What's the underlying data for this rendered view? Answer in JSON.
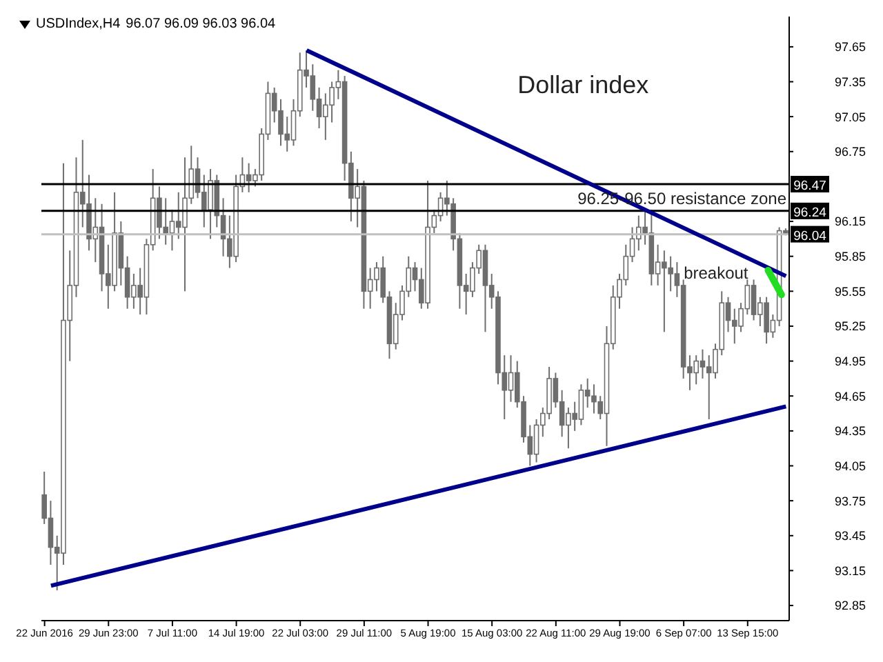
{
  "chart_data": {
    "type": "candlestick",
    "title": "USDIndex,H4",
    "subtitle": "96.07 96.09 96.03 96.04",
    "categories": [
      "22 Jun 2016",
      null,
      null,
      null,
      null,
      null,
      null,
      null,
      null,
      null,
      "29 Jun 23:00",
      null,
      null,
      null,
      null,
      null,
      null,
      null,
      null,
      null,
      "7 Jul 11:00",
      null,
      null,
      null,
      null,
      null,
      null,
      null,
      null,
      null,
      "14 Jul 19:00",
      null,
      null,
      null,
      null,
      null,
      null,
      null,
      null,
      null,
      "22 Jul 03:00",
      null,
      null,
      null,
      null,
      null,
      null,
      null,
      null,
      null,
      "29 Jul 11:00",
      null,
      null,
      null,
      null,
      null,
      null,
      null,
      null,
      null,
      "5 Aug 19:00",
      null,
      null,
      null,
      null,
      null,
      null,
      null,
      null,
      null,
      "15 Aug 03:00",
      null,
      null,
      null,
      null,
      null,
      null,
      null,
      null,
      null,
      "22 Aug 11:00",
      null,
      null,
      null,
      null,
      null,
      null,
      null,
      null,
      null,
      "29 Aug 19:00",
      null,
      null,
      null,
      null,
      null,
      null,
      null,
      null,
      null,
      "6 Sep 07:00",
      null,
      null,
      null,
      null,
      null,
      null,
      null,
      null,
      null,
      "13 Sep 15:00",
      null,
      null,
      null,
      null,
      null,
      null
    ],
    "color": "#6e6e6e",
    "ohlc": [
      [
        93.8,
        94.0,
        93.55,
        93.6
      ],
      [
        93.6,
        93.75,
        93.2,
        93.35
      ],
      [
        93.35,
        93.45,
        92.98,
        93.3
      ],
      [
        93.3,
        96.65,
        93.2,
        95.3
      ],
      [
        95.3,
        95.9,
        94.95,
        95.6
      ],
      [
        95.6,
        96.7,
        95.5,
        96.4
      ],
      [
        96.4,
        96.85,
        96.1,
        96.3
      ],
      [
        96.3,
        96.55,
        95.9,
        96.0
      ],
      [
        96.0,
        96.35,
        95.8,
        96.1
      ],
      [
        96.1,
        96.3,
        95.55,
        95.7
      ],
      [
        95.7,
        95.95,
        95.4,
        95.6
      ],
      [
        95.6,
        96.4,
        95.55,
        96.05
      ],
      [
        96.05,
        96.15,
        95.6,
        95.75
      ],
      [
        95.75,
        95.85,
        95.4,
        95.5
      ],
      [
        95.5,
        95.7,
        95.4,
        95.6
      ],
      [
        95.6,
        95.75,
        95.35,
        95.5
      ],
      [
        95.5,
        96.0,
        95.35,
        95.95
      ],
      [
        95.95,
        96.6,
        95.9,
        96.35
      ],
      [
        96.35,
        96.45,
        96.0,
        96.1
      ],
      [
        96.1,
        96.35,
        95.95,
        96.05
      ],
      [
        96.05,
        96.25,
        95.9,
        96.15
      ],
      [
        96.15,
        96.4,
        96.0,
        96.1
      ],
      [
        96.1,
        96.7,
        95.55,
        96.35
      ],
      [
        96.35,
        96.8,
        96.3,
        96.6
      ],
      [
        96.6,
        96.7,
        96.35,
        96.4
      ],
      [
        96.4,
        96.55,
        96.1,
        96.25
      ],
      [
        96.25,
        96.6,
        96.0,
        96.5
      ],
      [
        96.5,
        96.55,
        96.1,
        96.2
      ],
      [
        96.2,
        96.35,
        95.85,
        96.0
      ],
      [
        96.0,
        96.2,
        95.75,
        95.85
      ],
      [
        95.85,
        96.55,
        95.8,
        96.45
      ],
      [
        96.45,
        96.7,
        96.4,
        96.55
      ],
      [
        96.55,
        96.65,
        96.4,
        96.5
      ],
      [
        96.5,
        96.6,
        96.45,
        96.55
      ],
      [
        96.55,
        96.95,
        96.5,
        96.9
      ],
      [
        96.9,
        97.35,
        96.85,
        97.25
      ],
      [
        97.25,
        97.3,
        97.0,
        97.1
      ],
      [
        97.1,
        97.2,
        96.8,
        96.9
      ],
      [
        96.9,
        97.05,
        96.75,
        96.85
      ],
      [
        96.85,
        97.2,
        96.8,
        97.1
      ],
      [
        97.1,
        97.6,
        97.05,
        97.45
      ],
      [
        97.45,
        97.62,
        97.3,
        97.4
      ],
      [
        97.4,
        97.5,
        97.1,
        97.2
      ],
      [
        97.2,
        97.3,
        96.95,
        97.05
      ],
      [
        97.05,
        97.25,
        96.85,
        97.15
      ],
      [
        97.15,
        97.35,
        97.0,
        97.3
      ],
      [
        97.3,
        97.45,
        97.2,
        97.35
      ],
      [
        97.35,
        97.4,
        96.5,
        96.65
      ],
      [
        96.65,
        96.75,
        96.15,
        96.35
      ],
      [
        96.35,
        96.6,
        96.1,
        96.45
      ],
      [
        96.45,
        96.5,
        95.4,
        95.55
      ],
      [
        95.55,
        95.75,
        95.4,
        95.65
      ],
      [
        95.65,
        95.8,
        95.55,
        95.75
      ],
      [
        95.75,
        95.85,
        95.45,
        95.5
      ],
      [
        95.5,
        95.55,
        94.97,
        95.1
      ],
      [
        95.1,
        95.45,
        95.05,
        95.35
      ],
      [
        95.35,
        95.6,
        95.3,
        95.55
      ],
      [
        95.55,
        95.85,
        95.5,
        95.75
      ],
      [
        95.75,
        95.8,
        95.55,
        95.65
      ],
      [
        95.65,
        95.75,
        95.4,
        95.45
      ],
      [
        95.45,
        96.5,
        95.4,
        96.1
      ],
      [
        96.1,
        96.25,
        96.05,
        96.2
      ],
      [
        96.2,
        96.4,
        96.15,
        96.35
      ],
      [
        96.35,
        96.5,
        96.2,
        96.3
      ],
      [
        96.3,
        96.35,
        95.9,
        96.0
      ],
      [
        96.0,
        96.05,
        95.4,
        95.6
      ],
      [
        95.6,
        95.7,
        95.35,
        95.55
      ],
      [
        95.55,
        95.8,
        95.5,
        95.75
      ],
      [
        95.75,
        95.95,
        95.7,
        95.9
      ],
      [
        95.9,
        95.95,
        95.2,
        95.6
      ],
      [
        95.6,
        95.7,
        95.4,
        95.5
      ],
      [
        95.5,
        95.55,
        94.75,
        94.85
      ],
      [
        94.85,
        95.0,
        94.45,
        94.7
      ],
      [
        94.7,
        95.0,
        94.6,
        94.85
      ],
      [
        94.85,
        94.95,
        94.55,
        94.6
      ],
      [
        94.6,
        94.65,
        94.25,
        94.3
      ],
      [
        94.3,
        94.4,
        94.05,
        94.15
      ],
      [
        94.15,
        94.45,
        94.08,
        94.4
      ],
      [
        94.4,
        94.55,
        94.3,
        94.5
      ],
      [
        94.5,
        94.9,
        94.45,
        94.8
      ],
      [
        94.8,
        94.85,
        94.55,
        94.6
      ],
      [
        94.6,
        94.7,
        94.3,
        94.4
      ],
      [
        94.4,
        94.55,
        94.2,
        94.5
      ],
      [
        94.5,
        94.6,
        94.35,
        94.45
      ],
      [
        94.45,
        94.75,
        94.4,
        94.7
      ],
      [
        94.7,
        94.8,
        94.55,
        94.65
      ],
      [
        94.65,
        94.75,
        94.5,
        94.6
      ],
      [
        94.6,
        94.65,
        94.45,
        94.5
      ],
      [
        94.5,
        95.25,
        94.22,
        95.1
      ],
      [
        95.1,
        95.6,
        95.05,
        95.5
      ],
      [
        95.5,
        95.7,
        95.4,
        95.65
      ],
      [
        95.65,
        95.95,
        95.6,
        95.85
      ],
      [
        95.85,
        96.1,
        95.8,
        96.0
      ],
      [
        96.0,
        96.2,
        95.9,
        96.1
      ],
      [
        96.1,
        96.26,
        95.95,
        96.05
      ],
      [
        96.05,
        96.25,
        95.6,
        95.7
      ],
      [
        95.7,
        95.95,
        95.6,
        95.8
      ],
      [
        95.8,
        95.9,
        95.2,
        95.75
      ],
      [
        95.75,
        95.85,
        95.55,
        95.7
      ],
      [
        95.7,
        95.8,
        95.5,
        95.6
      ],
      [
        95.6,
        95.65,
        94.8,
        94.9
      ],
      [
        94.9,
        95.0,
        94.7,
        94.85
      ],
      [
        94.85,
        95.0,
        94.75,
        94.95
      ],
      [
        94.95,
        95.05,
        94.8,
        94.9
      ],
      [
        94.9,
        95.0,
        94.45,
        94.85
      ],
      [
        94.85,
        95.1,
        94.8,
        95.05
      ],
      [
        95.05,
        95.55,
        95.0,
        95.45
      ],
      [
        95.45,
        95.5,
        95.2,
        95.3
      ],
      [
        95.3,
        95.4,
        95.1,
        95.25
      ],
      [
        95.25,
        95.45,
        95.2,
        95.4
      ],
      [
        95.4,
        95.65,
        95.35,
        95.6
      ],
      [
        95.6,
        95.65,
        95.3,
        95.35
      ],
      [
        95.35,
        95.5,
        95.25,
        95.45
      ],
      [
        95.45,
        95.5,
        95.1,
        95.2
      ],
      [
        95.2,
        95.35,
        95.15,
        95.3
      ],
      [
        95.3,
        96.1,
        95.25,
        96.07
      ],
      [
        96.07,
        96.09,
        96.03,
        96.04
      ]
    ],
    "series": [
      {
        "type": "line",
        "color": "#00008b",
        "values": [
          null,
          null,
          null,
          null,
          null,
          null,
          null,
          null,
          null,
          null,
          null,
          null,
          null,
          null,
          null,
          null,
          null,
          null,
          null,
          null,
          null,
          null,
          null,
          null,
          null,
          null,
          null,
          null,
          null,
          null,
          null,
          null,
          null,
          null,
          null,
          null,
          null,
          null,
          null,
          null,
          null,
          97.62,
          null,
          null,
          null,
          null,
          null,
          null,
          null,
          null,
          null,
          null,
          null,
          null,
          null,
          null,
          null,
          null,
          null,
          null,
          null,
          null,
          null,
          null,
          null,
          null,
          null,
          null,
          null,
          null,
          null,
          null,
          null,
          null,
          null,
          null,
          null,
          null,
          null,
          null,
          null,
          null,
          null,
          null,
          null,
          null,
          null,
          null,
          null,
          null,
          null,
          null,
          null,
          null,
          null,
          null,
          null,
          null,
          null,
          null,
          null,
          null,
          null,
          null,
          null,
          null,
          null,
          null,
          null,
          null,
          null,
          null,
          null,
          null,
          null,
          null,
          95.68
        ]
      },
      {
        "type": "line",
        "color": "#00008b",
        "values": [
          null,
          93.02,
          null,
          null,
          null,
          null,
          null,
          null,
          null,
          null,
          null,
          null,
          null,
          null,
          null,
          null,
          null,
          null,
          null,
          null,
          null,
          null,
          null,
          null,
          null,
          null,
          null,
          null,
          null,
          null,
          null,
          null,
          null,
          null,
          null,
          null,
          null,
          null,
          null,
          null,
          null,
          null,
          null,
          null,
          null,
          null,
          null,
          null,
          null,
          null,
          null,
          null,
          null,
          null,
          null,
          null,
          null,
          null,
          null,
          null,
          null,
          null,
          null,
          null,
          null,
          null,
          null,
          null,
          null,
          null,
          null,
          null,
          null,
          null,
          null,
          null,
          null,
          null,
          null,
          null,
          null,
          null,
          null,
          null,
          null,
          null,
          null,
          null,
          null,
          null,
          null,
          null,
          null,
          null,
          null,
          null,
          null,
          null,
          null,
          null,
          null,
          null,
          null,
          null,
          null,
          null,
          null,
          null,
          null,
          null,
          null,
          null,
          null,
          null,
          null,
          null,
          94.56
        ]
      }
    ],
    "ylim": [
      92.72,
      97.91
    ],
    "yticks": [
      92.85,
      93.15,
      93.45,
      93.75,
      94.05,
      94.35,
      94.65,
      94.95,
      95.25,
      95.55,
      95.85,
      96.15,
      96.75,
      97.05,
      97.35,
      97.65
    ],
    "ref_lines": [
      {
        "axis": "y",
        "value": 96.47,
        "label": "96.47",
        "color": "#000000"
      },
      {
        "axis": "y",
        "value": 96.24,
        "label": "96.24",
        "color": "#000000"
      },
      {
        "axis": "y",
        "value": 96.04,
        "label": "96.04",
        "color": "#c0c0c0"
      }
    ],
    "annotations": [
      "Dollar index",
      "96.25-96.50 resistance zone",
      "breakout"
    ],
    "grid": false,
    "legend": false
  }
}
